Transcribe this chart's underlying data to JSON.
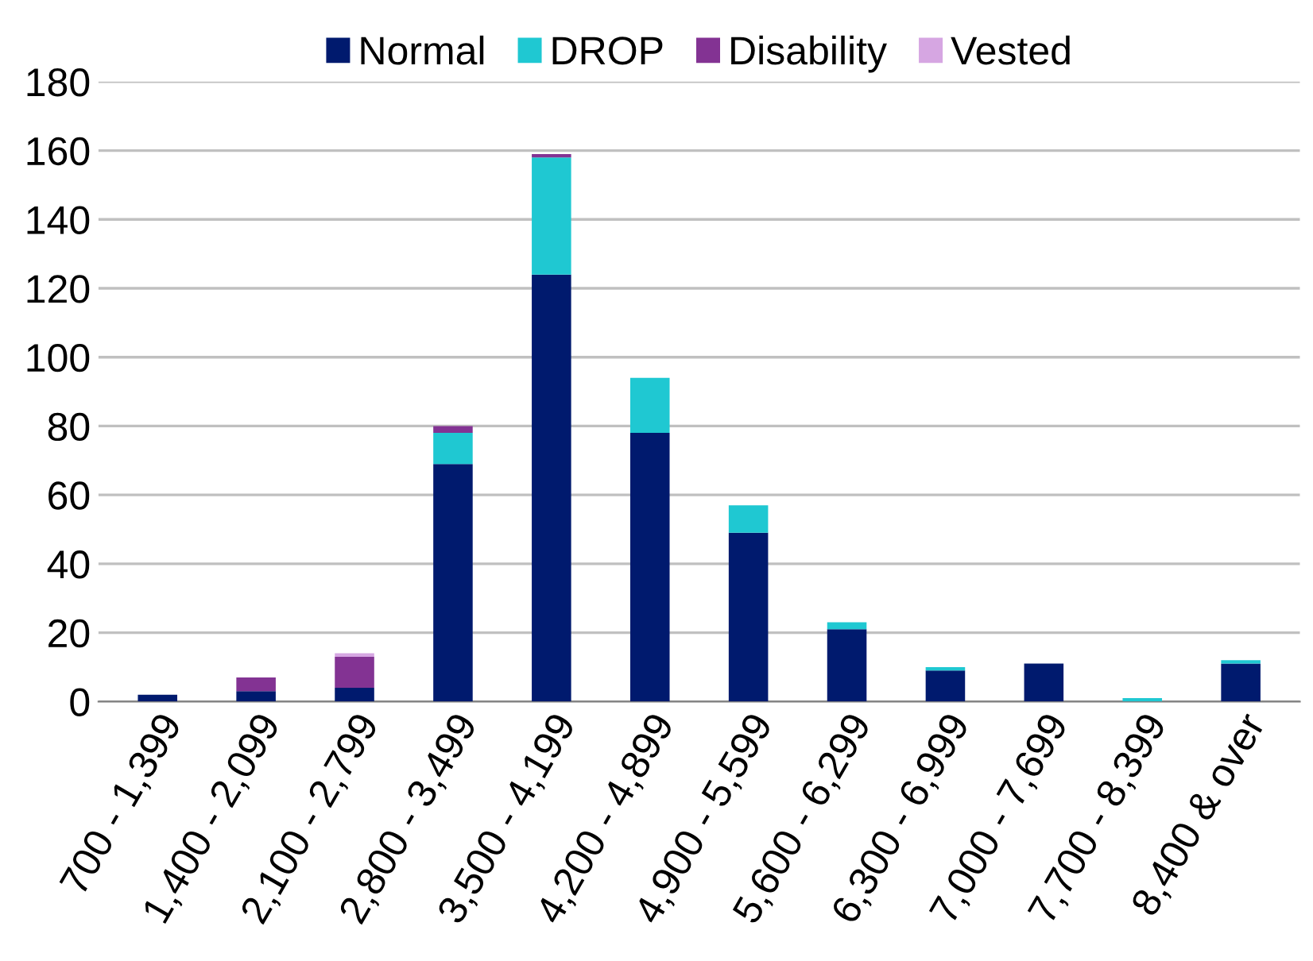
{
  "chart_data": {
    "type": "bar",
    "stacked": true,
    "categories": [
      "700 - 1,399",
      "1,400 - 2,099",
      "2,100 - 2,799",
      "2,800 - 3,499",
      "3,500 - 4,199",
      "4,200 - 4,899",
      "4,900 - 5,599",
      "5,600 - 6,299",
      "6,300 - 6,999",
      "7,000 - 7,699",
      "7,700 - 8,399",
      "8,400 & over"
    ],
    "series": [
      {
        "name": "Normal",
        "color": "#001a6e",
        "values": [
          2,
          3,
          4,
          69,
          124,
          78,
          49,
          21,
          9,
          11,
          0,
          11
        ]
      },
      {
        "name": "DROP",
        "color": "#1fc8d2",
        "values": [
          0,
          0,
          0,
          9,
          34,
          16,
          8,
          2,
          1,
          0,
          1,
          1
        ]
      },
      {
        "name": "Disability",
        "color": "#833393",
        "values": [
          0,
          4,
          9,
          2,
          1,
          0,
          0,
          0,
          0,
          0,
          0,
          0
        ]
      },
      {
        "name": "Vested",
        "color": "#d6a6e2",
        "values": [
          0,
          0,
          1,
          0,
          0,
          0,
          0,
          0,
          0,
          0,
          0,
          0
        ]
      }
    ],
    "ylim": [
      0,
      180
    ],
    "yticks": [
      0,
      20,
      40,
      60,
      80,
      100,
      120,
      140,
      160,
      180
    ],
    "grid": "y",
    "legend": "top"
  }
}
